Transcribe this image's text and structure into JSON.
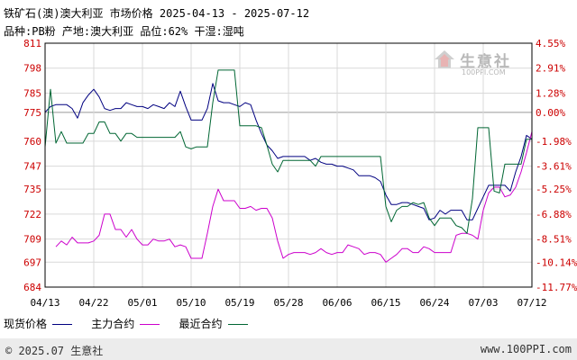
{
  "header": {
    "title": "铁矿石(澳)澳大利亚 市场价格 2025-04-13 - 2025-07-12",
    "subtitle": "品种:PB粉 产地:澳大利亚 品位:62% 干湿:湿吨"
  },
  "watermark": {
    "name": "生意社",
    "url": "100PPI.COM"
  },
  "footer": {
    "copyright": "© 2025.07 生意社",
    "url": "www.100PPI.com"
  },
  "colors": {
    "spot": "#000080",
    "main": "#cc00cc",
    "recent": "#006633",
    "grid": "#d9d9d9",
    "axis": "#000000",
    "pct": "#cc0000"
  },
  "chart_data": {
    "type": "line",
    "title": "铁矿石(澳)澳大利亚 市场价格 2025-04-13 - 2025-07-12",
    "ylim": [
      684,
      811
    ],
    "y_ticks": [
      "811",
      "798",
      "785",
      "775",
      "760",
      "747",
      "735",
      "722",
      "709",
      "697",
      "684"
    ],
    "y_tick_values": [
      811,
      798,
      785,
      775,
      760,
      747,
      735,
      722,
      709,
      697,
      684
    ],
    "pct_ticks": [
      "4.55%",
      "2.91%",
      "1.28%",
      "0.00%",
      "-1.98%",
      "-3.61%",
      "-5.25%",
      "-6.88%",
      "-8.51%",
      "-10.14%",
      "-11.77%"
    ],
    "baseline": 775,
    "x_ticks": [
      "04/13",
      "04/22",
      "05/01",
      "05/10",
      "05/19",
      "05/28",
      "06/06",
      "06/15",
      "06/24",
      "07/03",
      "07/12"
    ],
    "x_tick_days": [
      0,
      9,
      18,
      27,
      36,
      45,
      54,
      63,
      72,
      81,
      90
    ],
    "xlim": [
      0,
      90
    ],
    "grid": true,
    "legend_position": "bottom",
    "series": [
      {
        "name": "现货价格",
        "color": "#000080",
        "x": [
          0,
          1,
          2,
          3,
          4,
          5,
          6,
          7,
          8,
          9,
          10,
          11,
          12,
          13,
          14,
          15,
          16,
          17,
          18,
          19,
          20,
          21,
          22,
          23,
          24,
          25,
          26,
          27,
          28,
          29,
          30,
          31,
          32,
          33,
          34,
          35,
          36,
          37,
          38,
          39,
          40,
          41,
          42,
          43,
          44,
          45,
          46,
          47,
          48,
          49,
          50,
          51,
          52,
          53,
          54,
          55,
          56,
          57,
          58,
          59,
          60,
          61,
          62,
          63,
          64,
          65,
          66,
          67,
          68,
          69,
          70,
          71,
          72,
          73,
          74,
          75,
          76,
          77,
          78,
          79,
          80,
          81,
          82,
          83,
          84,
          85,
          86,
          87,
          88,
          89,
          90
        ],
        "y": [
          775,
          778,
          779,
          779,
          779,
          777,
          772,
          780,
          784,
          787,
          783,
          777,
          776,
          777,
          777,
          780,
          779,
          778,
          778,
          777,
          779,
          778,
          777,
          780,
          778,
          786,
          778,
          771,
          771,
          771,
          777,
          790,
          781,
          780,
          780,
          779,
          778,
          780,
          779,
          771,
          764,
          758,
          755,
          751,
          752,
          752,
          752,
          752,
          752,
          750,
          751,
          749,
          748,
          748,
          747,
          747,
          746,
          745,
          742,
          742,
          742,
          741,
          739,
          732,
          727,
          727,
          728,
          728,
          727,
          726,
          725,
          719,
          720,
          724,
          722,
          724,
          724,
          724,
          719,
          719,
          725,
          731,
          737,
          737,
          737,
          737,
          734,
          744,
          752,
          763,
          761
        ]
      },
      {
        "name": "主力合约",
        "color": "#cc00cc",
        "x": [
          2,
          3,
          4,
          5,
          6,
          7,
          8,
          9,
          10,
          11,
          12,
          13,
          14,
          15,
          16,
          17,
          18,
          19,
          20,
          21,
          22,
          23,
          24,
          25,
          26,
          27,
          28,
          29,
          30,
          31,
          32,
          33,
          34,
          35,
          36,
          37,
          38,
          39,
          40,
          41,
          42,
          43,
          44,
          45,
          46,
          47,
          48,
          49,
          50,
          51,
          52,
          53,
          54,
          55,
          56,
          57,
          58,
          59,
          60,
          61,
          62,
          63,
          64,
          65,
          66,
          67,
          68,
          69,
          70,
          71,
          72,
          73,
          74,
          75,
          76,
          77,
          78,
          79,
          80,
          81,
          82,
          83,
          84,
          85,
          86,
          87,
          88,
          89,
          90
        ],
        "y": [
          705,
          708,
          706,
          710,
          707,
          707,
          707,
          708,
          711,
          722,
          722,
          714,
          714,
          710,
          714,
          709,
          706,
          706,
          709,
          708,
          708,
          709,
          705,
          706,
          705,
          699,
          699,
          699,
          712,
          726,
          735,
          729,
          729,
          729,
          725,
          725,
          726,
          724,
          725,
          725,
          720,
          708,
          699,
          701,
          702,
          702,
          702,
          701,
          702,
          704,
          702,
          701,
          702,
          702,
          706,
          705,
          704,
          701,
          702,
          702,
          701,
          697,
          699,
          701,
          704,
          704,
          702,
          702,
          705,
          704,
          702,
          702,
          702,
          702,
          711,
          712,
          712,
          711,
          709,
          724,
          733,
          736,
          736,
          731,
          732,
          736,
          744,
          754,
          765
        ]
      },
      {
        "name": "最近合约",
        "color": "#006633",
        "x": [
          0,
          1,
          2,
          3,
          4,
          5,
          6,
          7,
          8,
          9,
          10,
          11,
          12,
          13,
          14,
          15,
          16,
          17,
          18,
          19,
          20,
          21,
          22,
          23,
          24,
          25,
          26,
          27,
          28,
          29,
          30,
          31,
          32,
          33,
          34,
          35,
          36,
          37,
          38,
          39,
          40,
          41,
          42,
          43,
          44,
          45,
          46,
          47,
          48,
          49,
          50,
          51,
          52,
          53,
          54,
          55,
          56,
          57,
          58,
          59,
          60,
          61,
          62,
          63,
          64,
          65,
          66,
          67,
          68,
          69,
          70,
          71,
          72,
          73,
          74,
          75,
          76,
          77,
          78,
          79,
          80,
          81,
          82,
          83,
          84,
          85,
          86,
          87,
          88,
          89,
          90
        ],
        "y": [
          757,
          787,
          759,
          765,
          759,
          759,
          759,
          759,
          764,
          764,
          770,
          770,
          764,
          764,
          760,
          764,
          764,
          762,
          762,
          762,
          762,
          762,
          762,
          762,
          762,
          765,
          757,
          756,
          757,
          757,
          757,
          780,
          797,
          797,
          797,
          797,
          768,
          768,
          768,
          768,
          767,
          758,
          748,
          744,
          750,
          750,
          750,
          750,
          750,
          750,
          747,
          752,
          752,
          752,
          752,
          752,
          752,
          752,
          752,
          752,
          752,
          752,
          752,
          726,
          718,
          724,
          726,
          726,
          728,
          727,
          728,
          720,
          716,
          720,
          720,
          720,
          716,
          715,
          712,
          730,
          767,
          767,
          767,
          734,
          733,
          748,
          748,
          748,
          748,
          761,
          761
        ]
      }
    ]
  }
}
